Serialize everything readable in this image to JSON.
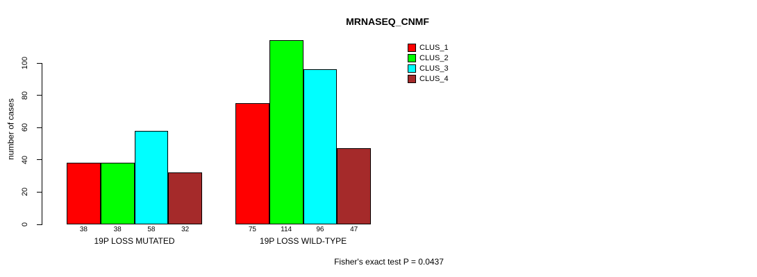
{
  "title": "MRNASEQ_CNMF",
  "y_axis": {
    "label": "number of cases",
    "ticks": [
      "0",
      "20",
      "40",
      "60",
      "80",
      "100"
    ]
  },
  "footer": "Fisher's exact test P = 0.0437",
  "legend": {
    "items": [
      {
        "label": "CLUS_1",
        "color": "#FF0000"
      },
      {
        "label": "CLUS_2",
        "color": "#00FF00"
      },
      {
        "label": "CLUS_3",
        "color": "#00FFFF"
      },
      {
        "label": "CLUS_4",
        "color": "#A52A2A"
      }
    ]
  },
  "chart_data": {
    "type": "bar",
    "title": "MRNASEQ_CNMF",
    "xlabel": "",
    "ylabel": "number of cases",
    "categories": [
      "19P LOSS MUTATED",
      "19P LOSS WILD-TYPE"
    ],
    "series": [
      {
        "name": "CLUS_1",
        "color": "#FF0000",
        "values": [
          38,
          75
        ]
      },
      {
        "name": "CLUS_2",
        "color": "#00FF00",
        "values": [
          38,
          114
        ]
      },
      {
        "name": "CLUS_3",
        "color": "#00FFFF",
        "values": [
          58,
          96
        ]
      },
      {
        "name": "CLUS_4",
        "color": "#A52A2A",
        "values": [
          32,
          47
        ]
      }
    ],
    "bar_value_labels": [
      [
        38,
        38,
        58,
        32
      ],
      [
        75,
        114,
        96,
        47
      ]
    ],
    "yticks": [
      0,
      20,
      40,
      60,
      80,
      100
    ],
    "ylim": [
      0,
      114
    ],
    "grid": false,
    "legend_position": "top-right",
    "annotation": "Fisher's exact test P = 0.0437"
  }
}
